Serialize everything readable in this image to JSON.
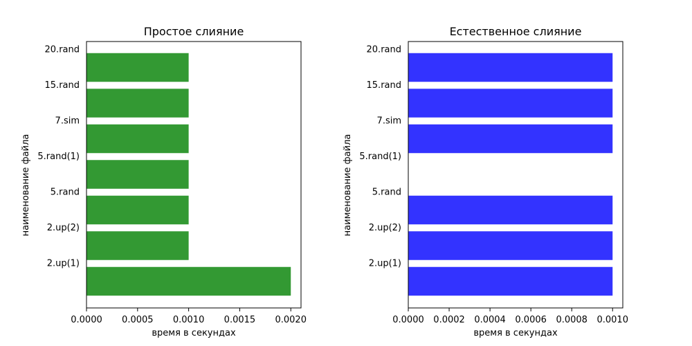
{
  "chart_data": [
    {
      "type": "bar",
      "orientation": "horizontal",
      "title": "Простое слияние",
      "xlabel": "время в секундах",
      "ylabel": "наименование файла",
      "categories": [
        "2.up(1)",
        "2.up(2)",
        "5.rand",
        "5.rand(1)",
        "7.sim",
        "15.rand",
        "20.rand"
      ],
      "values": [
        0.002,
        0.001,
        0.001,
        0.001,
        0.001,
        0.001,
        0.001
      ],
      "xlim": [
        0,
        0.0021
      ],
      "xticks": [
        "0.0000",
        "0.0005",
        "0.0010",
        "0.0015",
        "0.0020"
      ],
      "color": "#339933",
      "grid": false
    },
    {
      "type": "bar",
      "orientation": "horizontal",
      "title": "Естественное слияние",
      "xlabel": "время в секундах",
      "ylabel": "наименование файла",
      "categories": [
        "2.up(1)",
        "2.up(2)",
        "5.rand",
        "5.rand(1)",
        "7.sim",
        "15.rand",
        "20.rand"
      ],
      "values": [
        0.001,
        0.001,
        0.001,
        0,
        0.001,
        0.001,
        0.001
      ],
      "xlim": [
        0,
        0.00105
      ],
      "xticks": [
        "0.0000",
        "0.0002",
        "0.0004",
        "0.0006",
        "0.0008",
        "0.0010"
      ],
      "color": "#3333ff",
      "grid": false
    }
  ]
}
